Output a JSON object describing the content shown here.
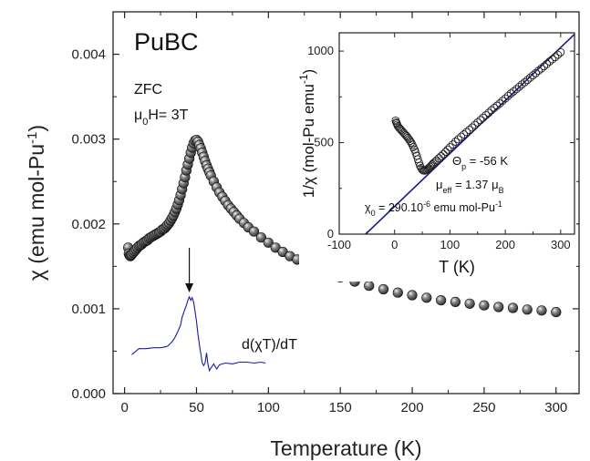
{
  "chart_data": [
    {
      "type": "scatter",
      "xlabel": "Temperature (K)",
      "ylabel": "χ (emu mol-Pu-1)",
      "xlim": [
        -8,
        316
      ],
      "ylim": [
        0,
        0.0045
      ],
      "xticks": [
        "0",
        "50",
        "100",
        "150",
        "200",
        "250",
        "300"
      ],
      "yticks": [
        "0.000",
        "0.001",
        "0.002",
        "0.003",
        "0.004"
      ],
      "grid": false,
      "marker_color": "#222222",
      "annotations": {
        "compound": "PuBC",
        "protocol": "ZFC",
        "field_prefix": "μ",
        "field_sub": "0",
        "field_suffix": "H= 3T",
        "deriv_label": "d(χT)/dT",
        "arrow_x": 45
      },
      "series": [
        {
          "name": "χ(T)",
          "x": [
            2.5,
            3,
            3.5,
            4,
            4.5,
            5,
            6,
            7,
            8,
            9,
            10,
            11,
            12,
            13,
            14,
            15,
            16,
            17,
            18,
            19,
            20,
            21,
            22,
            23,
            24,
            25,
            26,
            27,
            28,
            29,
            30,
            31,
            32,
            33,
            34,
            35,
            36,
            37,
            38,
            39,
            40,
            41,
            42,
            43,
            44,
            45,
            46,
            47,
            48,
            49,
            50,
            51,
            52,
            53,
            54,
            55,
            56,
            57,
            58,
            59,
            60,
            62,
            64,
            66,
            68,
            70,
            72,
            74,
            76,
            78,
            80,
            83,
            86,
            90,
            95,
            100,
            105,
            110,
            115,
            120,
            125,
            130,
            140,
            150,
            160,
            170,
            180,
            190,
            200,
            210,
            220,
            230,
            240,
            250,
            260,
            270,
            280,
            290,
            300
          ],
          "y": [
            0.00172,
            0.00165,
            0.00163,
            0.00162,
            0.00163,
            0.00164,
            0.00166,
            0.00168,
            0.0017,
            0.00172,
            0.00174,
            0.00175,
            0.00176,
            0.00178,
            0.00179,
            0.0018,
            0.00181,
            0.00183,
            0.00184,
            0.00185,
            0.00186,
            0.00187,
            0.00188,
            0.00189,
            0.0019,
            0.00191,
            0.00193,
            0.00194,
            0.00195,
            0.00197,
            0.00199,
            0.00201,
            0.00204,
            0.00207,
            0.0021,
            0.00214,
            0.00218,
            0.00223,
            0.00228,
            0.00234,
            0.00241,
            0.00248,
            0.00255,
            0.00263,
            0.0027,
            0.00277,
            0.00284,
            0.0029,
            0.00295,
            0.00298,
            0.00299,
            0.00297,
            0.00293,
            0.00289,
            0.00284,
            0.00279,
            0.00274,
            0.00269,
            0.00265,
            0.00261,
            0.00257,
            0.0025,
            0.00243,
            0.00237,
            0.00232,
            0.00227,
            0.00222,
            0.00218,
            0.00214,
            0.0021,
            0.00206,
            0.00201,
            0.00196,
            0.00191,
            0.00184,
            0.00178,
            0.00172,
            0.00167,
            0.00162,
            0.00158,
            0.00154,
            0.0015,
            0.00143,
            0.00137,
            0.00132,
            0.00127,
            0.00123,
            0.00119,
            0.00116,
            0.00113,
            0.0011,
            0.00108,
            0.00106,
            0.00104,
            0.00102,
            0.00101,
            0.00099,
            0.00098,
            0.00096
          ]
        },
        {
          "name": "d(χT)/dT",
          "color": "#1a1aa8",
          "x": [
            5,
            10,
            15,
            20,
            25,
            28,
            30,
            33,
            35,
            37,
            39,
            40,
            42,
            43,
            44,
            45,
            46,
            47,
            48,
            49,
            50,
            51,
            52,
            53,
            54,
            55,
            56,
            57,
            58,
            59,
            60,
            62,
            64,
            66,
            70,
            75,
            80,
            85,
            90,
            95,
            98
          ],
          "y": [
            0.00046,
            0.00053,
            0.00053,
            0.00054,
            0.00054,
            0.00055,
            0.00056,
            0.00061,
            0.00066,
            0.00073,
            0.00081,
            0.0009,
            0.001,
            0.00104,
            0.0011,
            0.00114,
            0.0011,
            0.00113,
            0.00108,
            0.00097,
            0.00085,
            0.0007,
            0.00058,
            0.00047,
            0.00036,
            0.00033,
            0.00036,
            0.00048,
            0.00034,
            0.00027,
            0.0003,
            0.00035,
            0.00029,
            0.00034,
            0.00036,
            0.00035,
            0.00037,
            0.00037,
            0.00036,
            0.00037,
            0.00036
          ]
        }
      ]
    },
    {
      "type": "scatter",
      "xlabel": "T (K)",
      "ylabel": "1/χ (mol-Pu emu-1)",
      "xlim": [
        -100,
        325
      ],
      "ylim": [
        0,
        1100
      ],
      "xticks": [
        "-100",
        "0",
        "100",
        "200",
        "300"
      ],
      "yticks": [
        "0",
        "500",
        "1000"
      ],
      "fit_color": "#1a1a8c",
      "fit": {
        "x": [
          -100,
          325
        ],
        "y": [
          -138,
          1092
        ]
      },
      "annotations": {
        "theta_prefix": "Θ",
        "theta_sub": "p",
        "theta_value": " = -56 K",
        "mu_prefix": "μ",
        "mu_sub": "eff",
        "mu_value": " = 1.37 μ",
        "mu_unit_sub": "B",
        "chi0_prefix": "χ",
        "chi0_sub": "0",
        "chi0_value": " = 290.10",
        "chi0_exp": "-6",
        "chi0_unit": " emu mol-Pu",
        "chi0_unit_exp": "-1"
      },
      "series": [
        {
          "name": "1/χ",
          "x": [
            2,
            3,
            4,
            5,
            6,
            8,
            10,
            12,
            14,
            16,
            18,
            20,
            22,
            24,
            26,
            28,
            30,
            32,
            34,
            36,
            38,
            40,
            42,
            44,
            46,
            48,
            50,
            52,
            54,
            56,
            58,
            60,
            62,
            64,
            66,
            68,
            70,
            73,
            76,
            80,
            84,
            88,
            92,
            96,
            100,
            105,
            110,
            115,
            120,
            125,
            130,
            135,
            140,
            145,
            150,
            155,
            160,
            165,
            170,
            175,
            180,
            185,
            190,
            195,
            200,
            205,
            210,
            215,
            220,
            225,
            230,
            235,
            240,
            245,
            250,
            255,
            260,
            265,
            270,
            275,
            280,
            285,
            290,
            295,
            300
          ],
          "y": [
            620,
            610,
            605,
            598,
            590,
            582,
            575,
            568,
            562,
            555,
            548,
            541,
            534,
            526,
            518,
            509,
            500,
            489,
            476,
            462,
            446,
            428,
            409,
            391,
            374,
            361,
            352,
            348,
            347,
            349,
            352,
            357,
            362,
            368,
            374,
            381,
            387,
            395,
            403,
            415,
            426,
            437,
            450,
            462,
            475,
            490,
            505,
            518,
            532,
            545,
            558,
            570,
            583,
            597,
            610,
            623,
            636,
            650,
            663,
            677,
            690,
            702,
            714,
            728,
            741,
            755,
            768,
            780,
            792,
            805,
            818,
            830,
            842,
            855,
            868,
            880,
            893,
            905,
            917,
            930,
            943,
            955,
            967,
            980,
            994
          ]
        }
      ]
    }
  ]
}
